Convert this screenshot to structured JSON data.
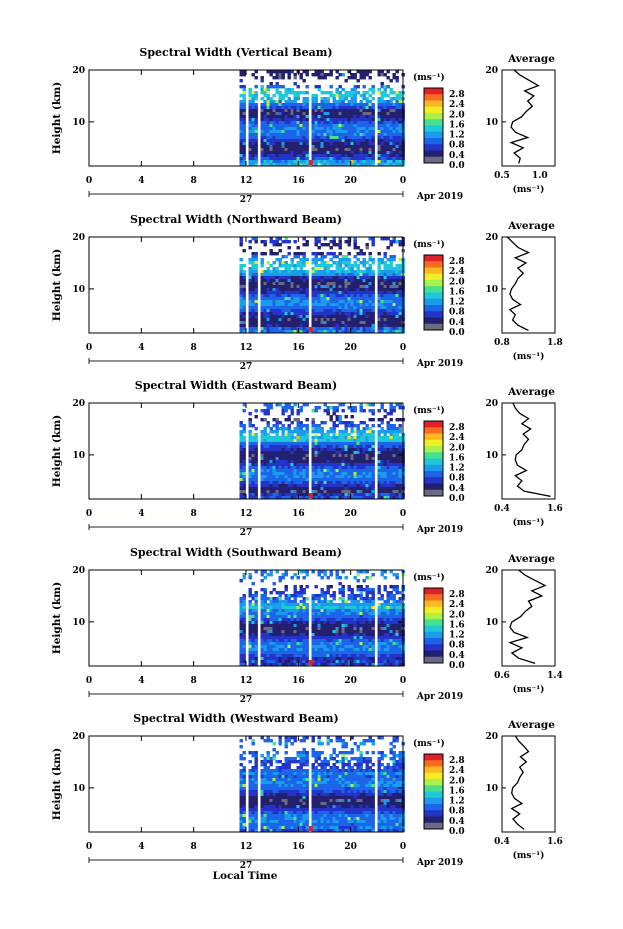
{
  "figure": {
    "x_axis_label": "Local Time",
    "date_label": "Apr 2019",
    "date_day": "27",
    "y_label": "Height (km)",
    "avg_title": "Average",
    "unit_label": "(ms⁻¹)",
    "colorbar_ticks": [
      "2.8",
      "2.4",
      "2.0",
      "1.6",
      "1.2",
      "0.8",
      "0.4",
      "0.0"
    ],
    "colorbar_colors": [
      "#e0202a",
      "#f86c20",
      "#fbb820",
      "#f2ee24",
      "#aaf24a",
      "#46e08e",
      "#1ec8d8",
      "#1a9cec",
      "#1c64e8",
      "#2434c8",
      "#242070",
      "#6a6a80"
    ],
    "time_ticks": [
      "0",
      "4",
      "8",
      "12",
      "16",
      "20",
      "0"
    ],
    "height_ticks": [
      "20",
      "10"
    ]
  },
  "chart_data": [
    {
      "type": "heatmap",
      "title": "Spectral Width (Vertical Beam)",
      "xlabel": "Local Time",
      "ylabel": "Height (km)",
      "xlim": [
        0,
        24
      ],
      "ylim": [
        1.5,
        20
      ],
      "clim": [
        0.0,
        2.8
      ],
      "colorbar_label": "(ms⁻¹)",
      "data_start_hour": 11.5,
      "missing_columns": [
        [
          11.9,
          12.0
        ],
        [
          12.5,
          12.6
        ],
        [
          12.8,
          13.1
        ],
        [
          16.1,
          16.3
        ],
        [
          16.6,
          16.8
        ],
        [
          21.6,
          21.9
        ]
      ],
      "average_profile": {
        "title": "Average",
        "xlabel": "(ms⁻¹)",
        "xlim": [
          0.5,
          1.2
        ],
        "xtick_labels": [
          "0.5",
          "1.0"
        ],
        "height": [
          2,
          3,
          4,
          5,
          6,
          7,
          8,
          9,
          10,
          11,
          12,
          13,
          14,
          15,
          16,
          17,
          18,
          19,
          20
        ],
        "width": [
          0.72,
          0.74,
          0.66,
          0.78,
          0.62,
          0.84,
          0.68,
          0.62,
          0.64,
          0.76,
          0.82,
          0.9,
          0.84,
          0.92,
          0.8,
          0.98,
          0.86,
          0.74,
          0.66
        ]
      }
    },
    {
      "type": "heatmap",
      "title": "Spectral Width (Northward Beam)",
      "xlabel": "Local Time",
      "ylabel": "Height (km)",
      "xlim": [
        0,
        24
      ],
      "ylim": [
        1.5,
        20
      ],
      "clim": [
        0.0,
        2.8
      ],
      "colorbar_label": "(ms⁻¹)",
      "data_start_hour": 11.5,
      "missing_columns": [
        [
          11.9,
          12.0
        ],
        [
          12.5,
          12.6
        ],
        [
          12.8,
          13.1
        ],
        [
          16.1,
          16.3
        ],
        [
          16.6,
          16.8
        ],
        [
          21.6,
          21.9
        ]
      ],
      "average_profile": {
        "title": "Average",
        "xlabel": "(ms⁻¹)",
        "xlim": [
          0.8,
          1.8
        ],
        "xtick_labels": [
          "0.8",
          "1.8"
        ],
        "height": [
          2,
          3,
          4,
          5,
          6,
          7,
          8,
          9,
          10,
          11,
          12,
          13,
          14,
          15,
          16,
          17,
          18,
          19,
          20
        ],
        "width": [
          1.3,
          1.1,
          1.0,
          1.05,
          0.95,
          1.15,
          1.0,
          0.95,
          0.98,
          1.05,
          1.1,
          1.2,
          1.1,
          1.25,
          1.05,
          1.3,
          1.1,
          1.0,
          0.9
        ]
      }
    },
    {
      "type": "heatmap",
      "title": "Spectral Width (Eastward Beam)",
      "xlabel": "Local Time",
      "ylabel": "Height (km)",
      "xlim": [
        0,
        24
      ],
      "ylim": [
        1.5,
        20
      ],
      "clim": [
        0.0,
        2.8
      ],
      "colorbar_label": "(ms⁻¹)",
      "data_start_hour": 11.5,
      "missing_columns": [
        [
          11.9,
          12.0
        ],
        [
          12.5,
          12.6
        ],
        [
          12.8,
          13.1
        ],
        [
          16.1,
          16.3
        ],
        [
          16.6,
          16.8
        ],
        [
          21.6,
          21.9
        ]
      ],
      "average_profile": {
        "title": "Average",
        "xlabel": "(ms⁻¹)",
        "xlim": [
          0.4,
          1.6
        ],
        "xtick_labels": [
          "0.4",
          "1.6"
        ],
        "height": [
          2,
          3,
          4,
          5,
          6,
          7,
          8,
          9,
          10,
          11,
          12,
          13,
          14,
          15,
          16,
          17,
          18,
          19,
          20
        ],
        "width": [
          1.5,
          0.9,
          0.75,
          0.85,
          0.7,
          0.95,
          0.75,
          0.7,
          0.72,
          0.85,
          0.9,
          1.0,
          0.88,
          1.05,
          0.85,
          1.0,
          0.8,
          0.7,
          0.65
        ]
      }
    },
    {
      "type": "heatmap",
      "title": "Spectral Width (Southward Beam)",
      "xlabel": "Local Time",
      "ylabel": "Height (km)",
      "xlim": [
        0,
        24
      ],
      "ylim": [
        1.5,
        20
      ],
      "clim": [
        0.0,
        2.8
      ],
      "colorbar_label": "(ms⁻¹)",
      "data_start_hour": 11.5,
      "missing_columns": [
        [
          11.9,
          12.0
        ],
        [
          12.5,
          12.6
        ],
        [
          12.8,
          13.1
        ],
        [
          16.1,
          16.3
        ],
        [
          16.6,
          16.8
        ],
        [
          21.6,
          21.9
        ]
      ],
      "average_profile": {
        "title": "Average",
        "xlabel": "(ms⁻¹)",
        "xlim": [
          0.6,
          1.4
        ],
        "xtick_labels": [
          "0.6",
          "1.4"
        ],
        "height": [
          2,
          3,
          4,
          5,
          6,
          7,
          8,
          9,
          10,
          11,
          12,
          13,
          14,
          15,
          16,
          17,
          18,
          19,
          20
        ],
        "width": [
          1.1,
          0.85,
          0.75,
          0.9,
          0.72,
          0.98,
          0.78,
          0.72,
          0.75,
          0.88,
          0.95,
          1.05,
          1.0,
          1.2,
          1.05,
          1.25,
          1.1,
          0.95,
          0.85
        ]
      }
    },
    {
      "type": "heatmap",
      "title": "Spectral Width (Westward Beam)",
      "xlabel": "Local Time",
      "ylabel": "Height (km)",
      "xlim": [
        0,
        24
      ],
      "ylim": [
        1.5,
        20
      ],
      "clim": [
        0.0,
        2.8
      ],
      "colorbar_label": "(ms⁻¹)",
      "data_start_hour": 11.5,
      "missing_columns": [
        [
          11.9,
          12.0
        ],
        [
          12.5,
          12.6
        ],
        [
          12.8,
          13.1
        ],
        [
          16.1,
          16.3
        ],
        [
          16.6,
          16.8
        ],
        [
          21.6,
          21.9
        ]
      ],
      "average_profile": {
        "title": "Average",
        "xlabel": "(ms⁻¹)",
        "xlim": [
          0.4,
          1.6
        ],
        "xtick_labels": [
          "0.4",
          "1.6"
        ],
        "height": [
          2,
          3,
          4,
          5,
          6,
          7,
          8,
          9,
          10,
          11,
          12,
          13,
          14,
          15,
          16,
          17,
          18,
          19,
          20
        ],
        "width": [
          0.9,
          0.75,
          0.65,
          0.8,
          0.62,
          0.85,
          0.68,
          0.62,
          0.64,
          0.75,
          0.8,
          0.88,
          0.8,
          0.95,
          0.82,
          1.0,
          0.9,
          0.78,
          0.7
        ]
      }
    }
  ]
}
